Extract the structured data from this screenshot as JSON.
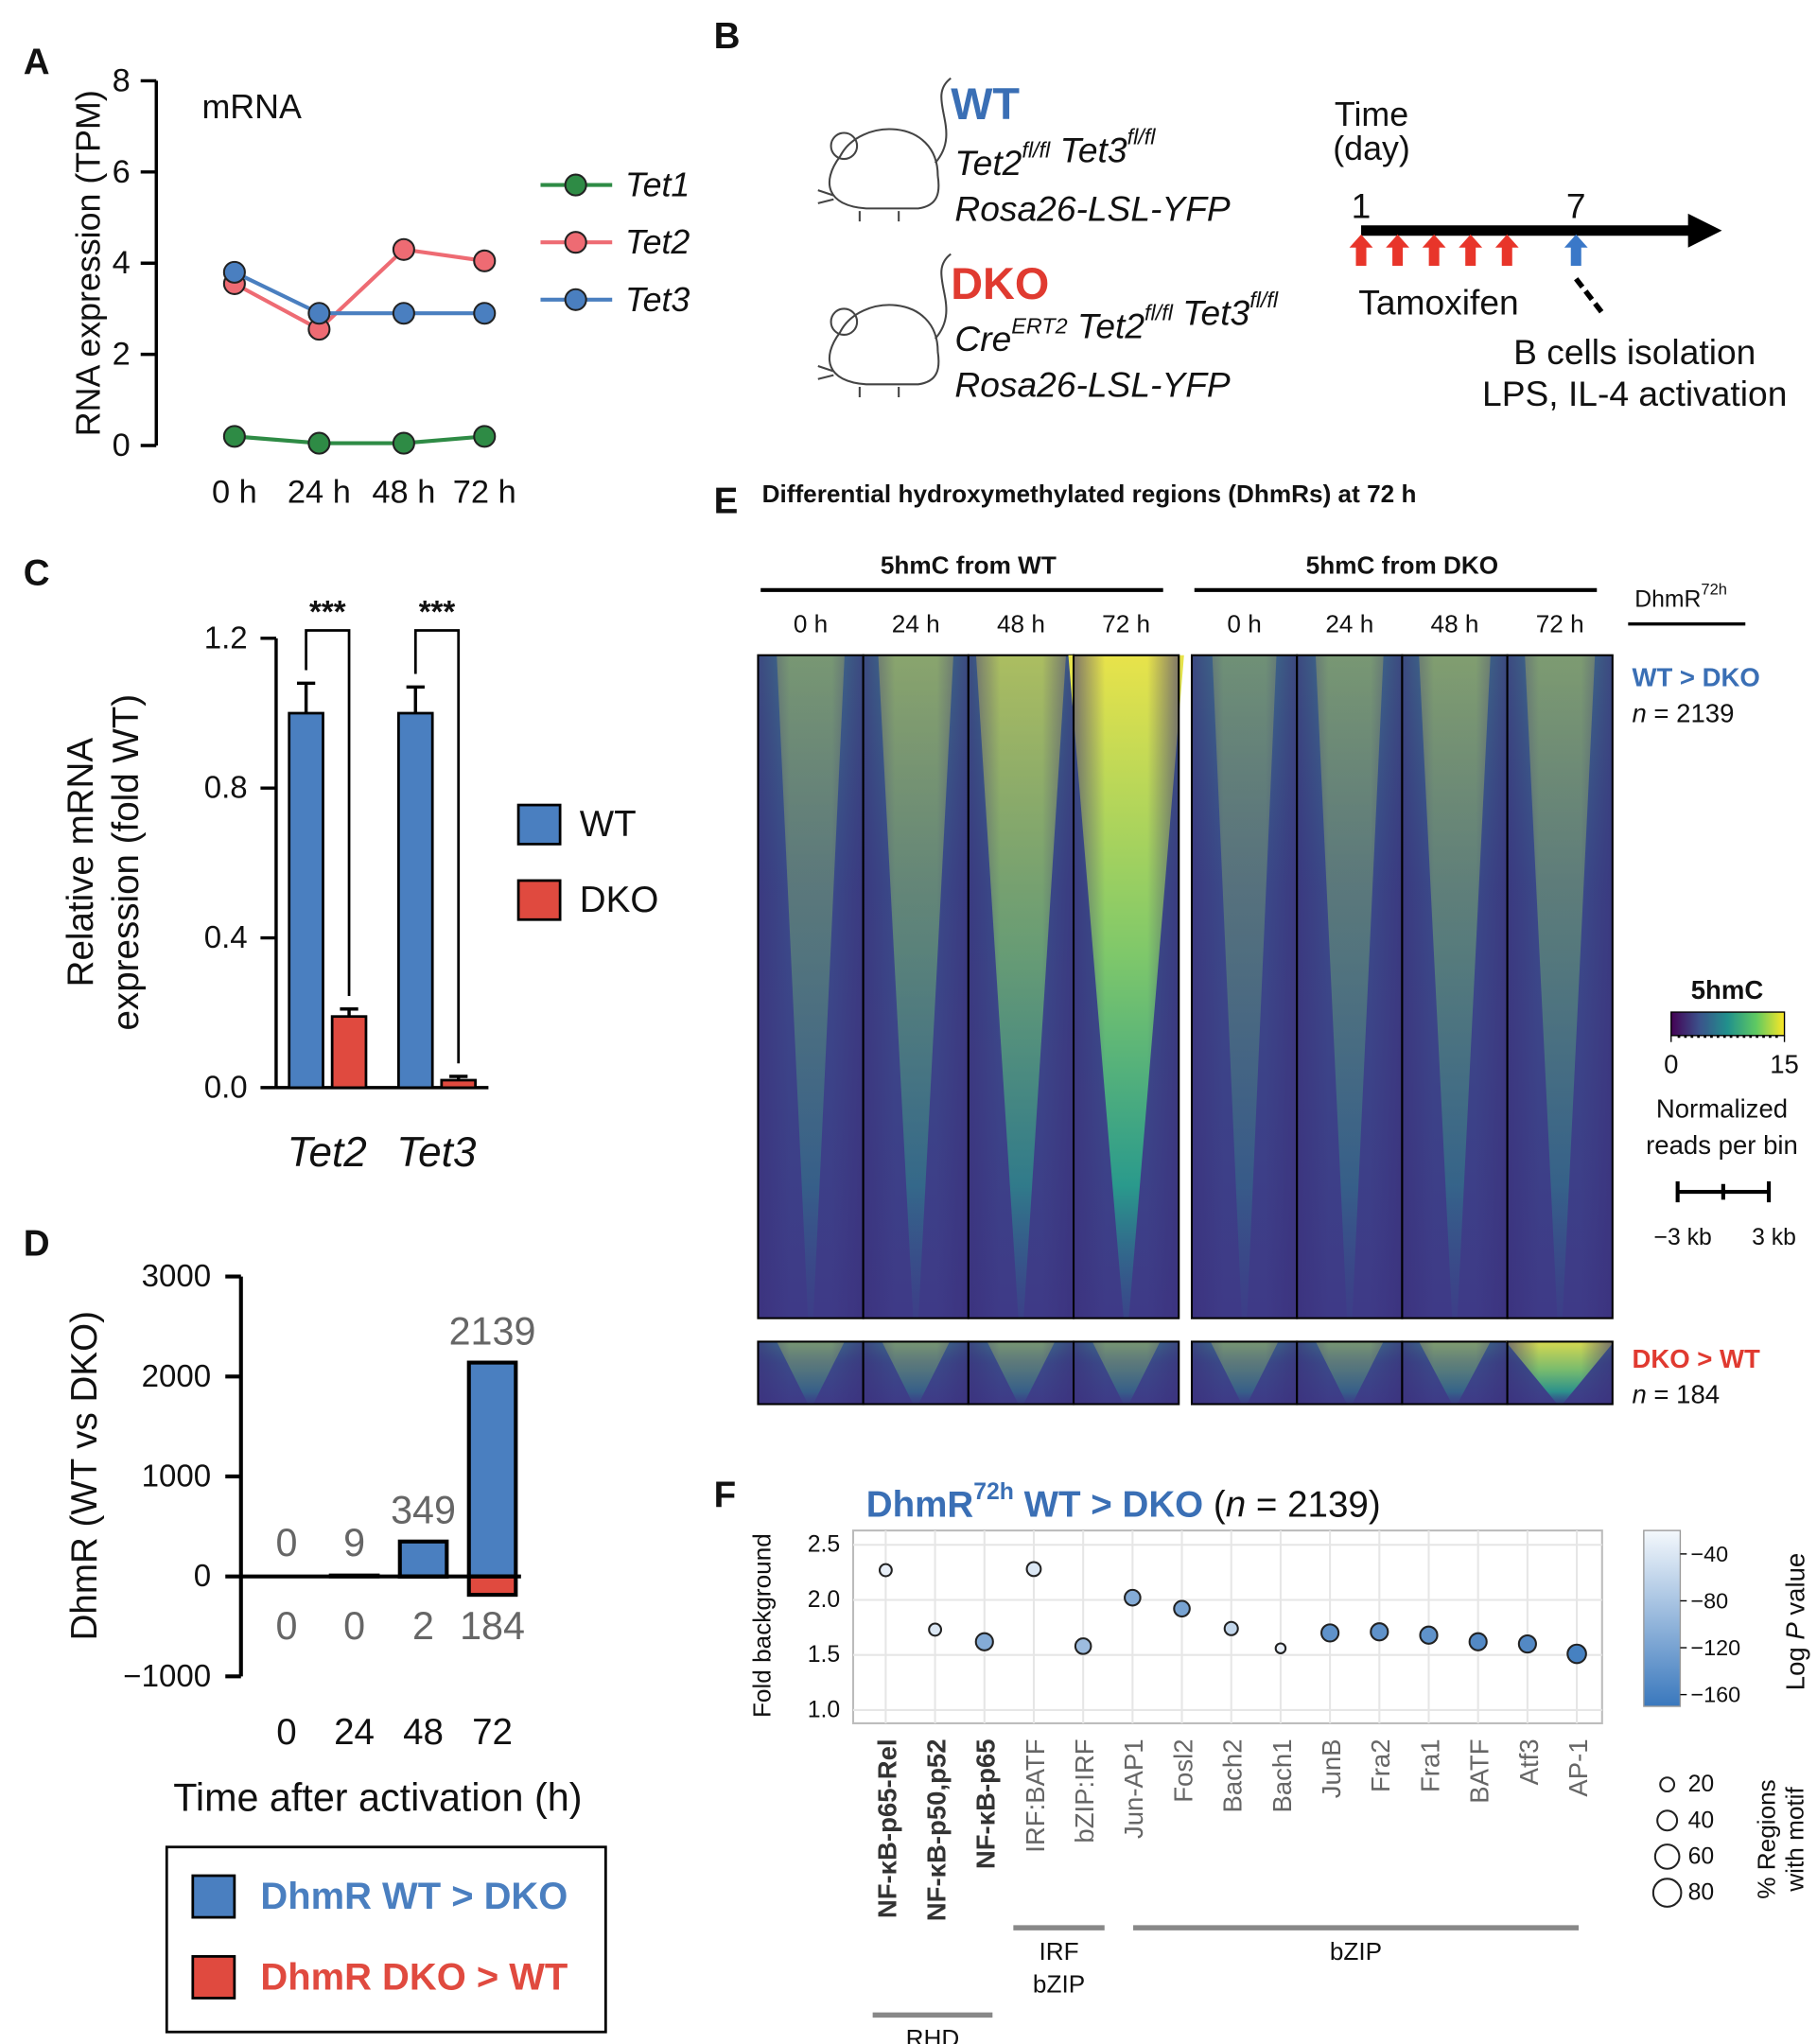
{
  "panels": [
    "A",
    "B",
    "C",
    "D",
    "E",
    "F"
  ],
  "chart_data": [
    {
      "type": "line",
      "title": "mRNA",
      "y_label": "RNA expression (TPM)",
      "categories": [
        "0 h",
        "24 h",
        "48 h",
        "72 h"
      ],
      "series": [
        {
          "name": "Tet1",
          "color": "#2e8b45",
          "values": [
            0.2,
            0.05,
            0.05,
            0.2
          ]
        },
        {
          "name": "Tet2",
          "color": "#ee6b73",
          "values": [
            3.55,
            2.55,
            4.3,
            4.05
          ]
        },
        {
          "name": "Tet3",
          "color": "#4a7fc0",
          "values": [
            3.8,
            2.9,
            2.9,
            2.9
          ]
        }
      ],
      "ylim": [
        0,
        8
      ],
      "yticks": [
        0,
        2,
        4,
        6,
        8
      ]
    },
    {
      "type": "bar",
      "y_label": [
        "Relative mRNA",
        "expression (fold WT)"
      ],
      "categories": [
        "Tet2",
        "Tet3"
      ],
      "series": [
        {
          "name": "WT",
          "color": "#4a7fc0",
          "values": [
            1.0,
            1.0
          ],
          "errors": [
            0.08,
            0.07
          ]
        },
        {
          "name": "DKO",
          "color": "#e04a3f",
          "values": [
            0.19,
            0.02
          ],
          "errors": [
            0.02,
            0.01
          ]
        }
      ],
      "ylim": [
        0,
        1.2
      ],
      "yticks": [
        {
          "value": 0,
          "label": "0.0"
        },
        {
          "value": 0.4,
          "label": "0.4"
        },
        {
          "value": 0.8,
          "label": "0.8"
        },
        {
          "value": 1.2,
          "label": "1.2"
        }
      ],
      "annotations": [
        "***",
        "***"
      ]
    },
    {
      "type": "diverging_bar",
      "y_label": "DhmR (WT vs DKO)",
      "x_label": "Time after activation (h)",
      "categories": [
        "0",
        "24",
        "48",
        "72"
      ],
      "series": [
        {
          "name": "DhmR WT > DKO",
          "color": "#4a7fc0",
          "values": [
            0,
            9,
            349,
            2139
          ]
        },
        {
          "name": "DhmR DKO > WT",
          "color": "#e04a3f",
          "values": [
            0,
            0,
            -2,
            -184
          ],
          "value_labels": [
            "0",
            "0",
            "2",
            "184"
          ]
        }
      ],
      "ylim": [
        -1000,
        3000
      ],
      "yticks": [
        {
          "value": -1000,
          "label": "−1000"
        },
        0,
        1000,
        2000,
        3000
      ]
    },
    {
      "type": "scatter",
      "title": {
        "main": "DhmR",
        "sup": "72h",
        "rest": " WT > DKO",
        "paren": " (",
        "n": "n",
        "end": " = 2139)"
      },
      "y_label": "Fold background",
      "categories": [
        "NF-κB-p65-Rel",
        "NF-κB-p50,p52",
        "NF-κB-p65",
        "IRF:BATF",
        "bZIP:IRF",
        "Jun-AP1",
        "Fosl2",
        "Bach2",
        "Bach1",
        "JunB",
        "Fra2",
        "Fra1",
        "BATF",
        "Atf3",
        "AP-1"
      ],
      "values": [
        2.27,
        1.73,
        1.62,
        2.28,
        1.58,
        2.02,
        1.92,
        1.74,
        1.56,
        1.7,
        1.71,
        1.68,
        1.62,
        1.6,
        1.51
      ],
      "sizes": [
        15,
        15,
        30,
        20,
        25,
        25,
        25,
        18,
        10,
        30,
        30,
        30,
        30,
        30,
        35
      ],
      "log_p": [
        -30,
        -40,
        -110,
        -40,
        -90,
        -110,
        -120,
        -60,
        -30,
        -140,
        -140,
        -140,
        -150,
        -150,
        -160
      ],
      "ylim": [
        0.88,
        2.63
      ],
      "yticks": [
        {
          "value": 1.0,
          "label": "1.0"
        },
        {
          "value": 1.5,
          "label": "1.5"
        },
        {
          "value": 2.0,
          "label": "2.0"
        },
        {
          "value": 2.5,
          "label": "2.5"
        }
      ],
      "grid": true,
      "color_scale": {
        "label": [
          "Log ",
          "P",
          " value"
        ],
        "range": [
          -20,
          -170
        ],
        "colors": [
          "#f4f8fc",
          "#3a78bd"
        ],
        "ticks": [
          {
            "value": -40,
            "label": "−40"
          },
          {
            "value": -80,
            "label": "−80"
          },
          {
            "value": -120,
            "label": "−120"
          },
          {
            "value": -160,
            "label": "−160"
          }
        ]
      },
      "size_legend": {
        "label": [
          "% Regions",
          "with motif"
        ],
        "ticks": [
          20,
          40,
          60,
          80
        ]
      },
      "groups": [
        [
          "RHD"
        ],
        [
          "IRF",
          "bZIP"
        ],
        [
          "bZIP"
        ]
      ]
    }
  ],
  "schematic": {
    "wt": {
      "label": "WT",
      "lines": [
        [
          {
            "text": "Tet2",
            "sup": "fl/fl"
          },
          {
            "text": " Tet3",
            "sup": "fl/fl"
          }
        ],
        [
          {
            "text": "Rosa26-LSL-YFP"
          }
        ]
      ]
    },
    "dko": {
      "label": "DKO",
      "lines": [
        [
          {
            "text": "Cre",
            "sup": "ERT2"
          },
          {
            "text": " Tet2",
            "sup": "fl/fl"
          },
          {
            "text": " Tet3",
            "sup": "fl/fl"
          }
        ],
        [
          {
            "text": "Rosa26-LSL-YFP"
          }
        ]
      ]
    },
    "timeline": {
      "label": [
        "Time",
        "(day)"
      ],
      "start": 1,
      "end": 7,
      "tamoxifen_label": "Tamoxifen",
      "isolation_label": [
        "B cells isolation",
        "LPS, IL-4 activation"
      ]
    }
  },
  "heatmap": {
    "title": "Differential hydroxymethylated regions (DhmRs) at 72 h",
    "groups": [
      "5hmC from WT",
      "5hmC from DKO"
    ],
    "timepoints": [
      "0 h",
      "24 h",
      "48 h",
      "72 h"
    ],
    "row_title": {
      "text": "DhmR",
      "sup": "72h"
    },
    "clusters": [
      {
        "name": "WT > DKO",
        "count_label": [
          "n",
          " = 2139"
        ]
      },
      {
        "name": "DKO > WT",
        "count_label": [
          "n",
          " = 184"
        ]
      }
    ],
    "colorbar": {
      "label": "5hmC",
      "range": [
        0,
        15
      ],
      "ticks": [
        0,
        15
      ],
      "caption": [
        "Normalized",
        "reads per bin"
      ]
    },
    "scale_bar": [
      "−3 kb",
      "3 kb"
    ]
  }
}
